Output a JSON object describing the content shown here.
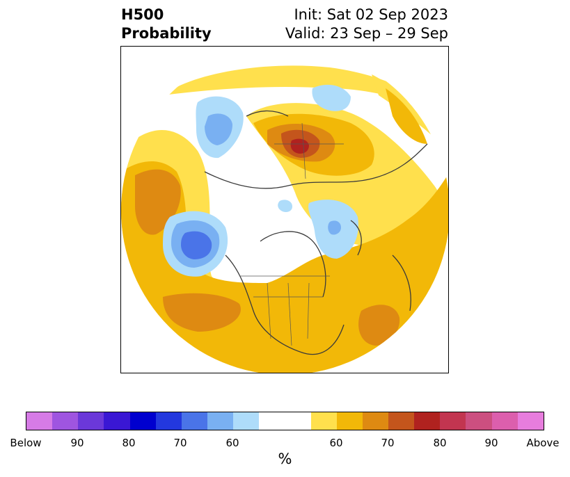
{
  "title": {
    "left_line1": "H500",
    "left_line2": "Probability",
    "right_line1": "Init: Sat 02 Sep 2023",
    "right_line2": "Valid: 23 Sep – 29 Sep"
  },
  "map": {
    "projection": "north-polar-stereographic",
    "features": [
      "coastlines",
      "country-borders",
      "us-state-borders",
      "canada-province-borders"
    ]
  },
  "colorbar": {
    "label": "%",
    "colors": [
      "#d67be6",
      "#9f55e0",
      "#6b38d9",
      "#3a17d4",
      "#0000cf",
      "#2338de",
      "#4a74e8",
      "#79b0f2",
      "#aedcfa",
      "#ffffff",
      "#ffe04d",
      "#f2b808",
      "#de8a12",
      "#c4551c",
      "#b0221f",
      "#c23550",
      "#cc4f80",
      "#dc5fad",
      "#e77ddd"
    ],
    "tick_labels": [
      "Below",
      "90",
      "80",
      "70",
      "60",
      "60",
      "70",
      "80",
      "90",
      "Above"
    ]
  }
}
